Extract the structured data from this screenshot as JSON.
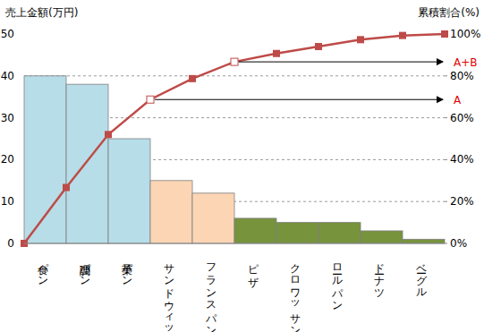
{
  "chart_data": {
    "type": "bar",
    "categories": [
      "食パン",
      "調理パン",
      "菓子パン",
      "サンドウィッチ",
      "フランスパン",
      "ピザ",
      "クロワッサン",
      "ロールパン",
      "ドーナツ",
      "ベーグル"
    ],
    "series": [
      {
        "name": "売上金額(万円)",
        "type": "bar",
        "values": [
          40,
          38,
          25,
          15,
          12,
          6,
          5,
          5,
          3,
          1
        ],
        "colors": [
          "#b7dde8",
          "#b7dde8",
          "#b7dde8",
          "#fcd5b5",
          "#fcd5b5",
          "#77933c",
          "#77933c",
          "#77933c",
          "#77933c",
          "#77933c"
        ]
      },
      {
        "name": "累積割合(%)",
        "type": "line",
        "axis": "y2",
        "color": "#be4b48",
        "marker": "square",
        "values": [
          26.7,
          52,
          68.7,
          78.7,
          86.7,
          90.7,
          94,
          97.3,
          99.3,
          100
        ]
      }
    ],
    "ylim": [
      0,
      50
    ],
    "yticks": [
      0,
      10,
      20,
      30,
      40,
      50
    ],
    "y2lim": [
      0,
      100
    ],
    "y2ticks": [
      {
        "value": 0,
        "label": "0%"
      },
      {
        "value": 20,
        "label": "20%"
      },
      {
        "value": 40,
        "label": "40%"
      },
      {
        "value": 60,
        "label": "60%"
      },
      {
        "value": 80,
        "label": "80%"
      },
      {
        "value": 100,
        "label": "100%"
      }
    ],
    "grid": true,
    "annotations": [
      {
        "text": "A+B",
        "category": "フランスパン"
      },
      {
        "text": "A",
        "category": "菓子パン"
      }
    ]
  }
}
